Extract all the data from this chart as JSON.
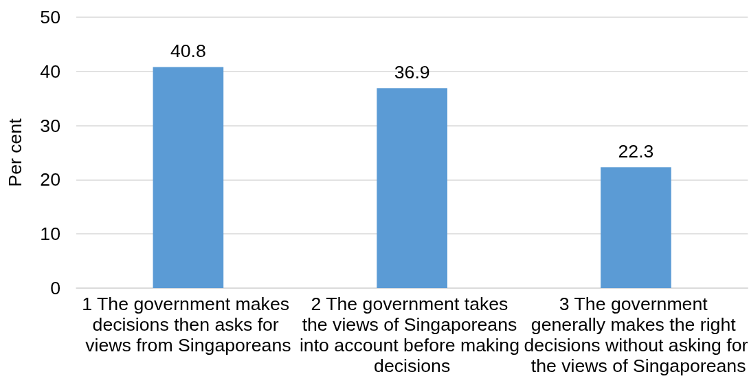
{
  "chart_data": {
    "type": "bar",
    "ylabel": "Per cent",
    "categories": [
      "1 The government makes decisions then asks for views from Singaporeans",
      "2 The government takes the views of Singaporeans into account before making decisions",
      "3 The government generally makes the right decisions without asking for the views of Singaporeans"
    ],
    "values": [
      40.8,
      36.9,
      22.3
    ],
    "color": "#5b9bd5",
    "data_labels": true,
    "ylim": [
      0,
      50
    ],
    "yticks": [
      0,
      10,
      20,
      30,
      40,
      50
    ],
    "grid": "y"
  }
}
